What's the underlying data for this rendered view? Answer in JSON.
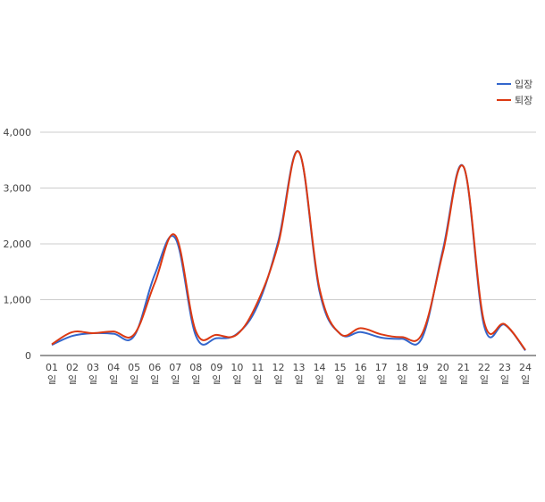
{
  "chart_data": {
    "type": "line",
    "smooth": true,
    "categories": [
      "01\n일",
      "02\n일",
      "03\n일",
      "04\n일",
      "05\n일",
      "06\n일",
      "07\n일",
      "08\n일",
      "09\n일",
      "10\n일",
      "11\n일",
      "12\n일",
      "13\n일",
      "14\n일",
      "15\n일",
      "16\n일",
      "17\n일",
      "18\n일",
      "19\n일",
      "20\n일",
      "21\n일",
      "22\n일",
      "23\n일",
      "24\n일"
    ],
    "series": [
      {
        "name": "입장",
        "color": "#3366cc",
        "values": [
          190,
          350,
          400,
          390,
          350,
          1450,
          2100,
          350,
          310,
          390,
          900,
          2050,
          3650,
          1150,
          390,
          420,
          320,
          300,
          330,
          1900,
          3380,
          530,
          550,
          90
        ]
      },
      {
        "name": "퇴장",
        "color": "#dc3912",
        "values": [
          200,
          420,
          400,
          430,
          380,
          1300,
          2150,
          430,
          370,
          380,
          960,
          2000,
          3650,
          1200,
          390,
          490,
          380,
          330,
          400,
          1850,
          3380,
          600,
          560,
          100
        ]
      }
    ],
    "yticks": [
      "0",
      "1,000",
      "2,000",
      "3,000",
      "4,000"
    ],
    "ylim": [
      0,
      4000
    ],
    "grid": true,
    "legend": "top-right"
  }
}
